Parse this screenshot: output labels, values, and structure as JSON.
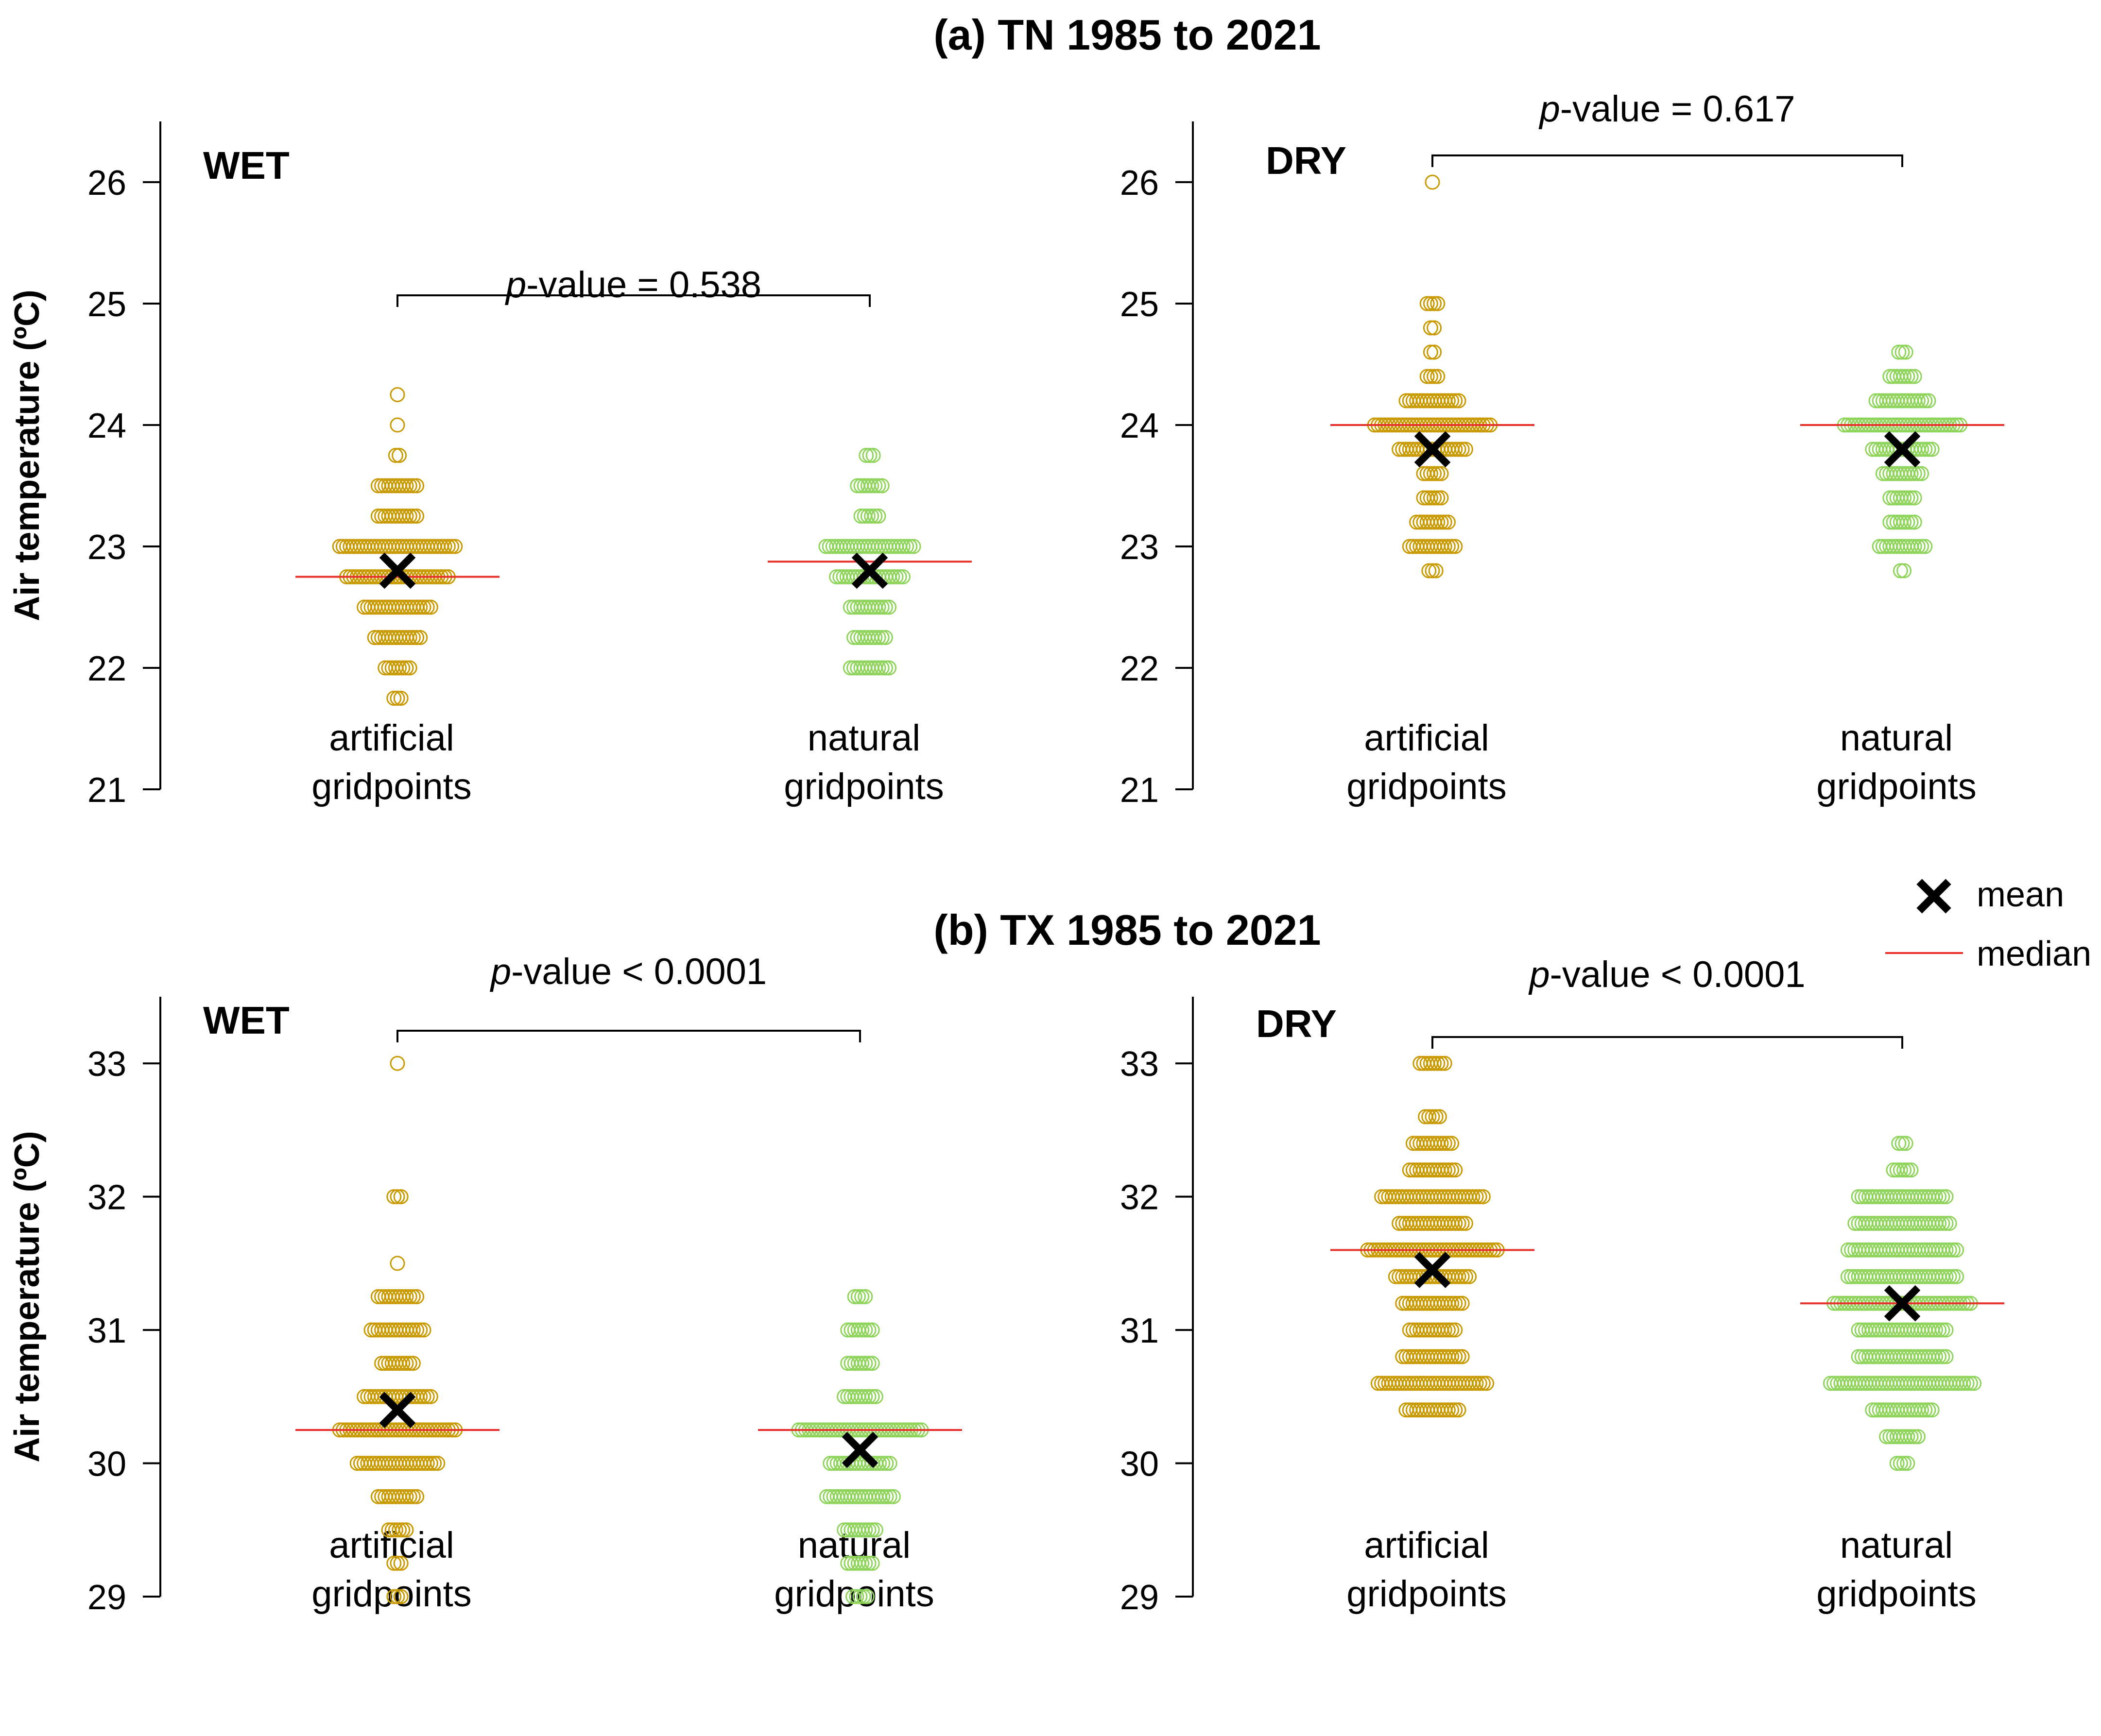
{
  "sections": [
    {
      "title": "(a) TN 1985 to 2021"
    },
    {
      "title": "(b) TX 1985 to 2021"
    }
  ],
  "legend": {
    "mean_label": "mean",
    "median_label": "median"
  },
  "labels": {
    "ylabel": "Air temperature (ºC)",
    "cat1_line1": "artificial",
    "cat1_line2": "gridpoints",
    "cat2_line1": "natural",
    "cat2_line2": "gridpoints",
    "p_prefix": "p"
  },
  "colors": {
    "artificial": "#c89a00",
    "natural": "#8fd45a",
    "median": "#e8302a",
    "mean": "#000000"
  },
  "chart_data": [
    {
      "type": "scatter",
      "title": "(a) TN 1985 to 2021",
      "panel": "WET",
      "ylabel": "Air temperature (ºC)",
      "ylim": [
        21,
        26.5
      ],
      "yticks": [
        21,
        22,
        23,
        24,
        25,
        26
      ],
      "categories": [
        "artificial gridpoints",
        "natural gridpoints"
      ],
      "p_value_text": "-value = 0.538",
      "series": [
        {
          "name": "artificial gridpoints",
          "mean": 22.8,
          "median": 22.75,
          "rows": [
            [
              24.25,
              1
            ],
            [
              24.0,
              1
            ],
            [
              23.75,
              2
            ],
            [
              23.5,
              12
            ],
            [
              23.25,
              12
            ],
            [
              23.0,
              34
            ],
            [
              22.75,
              30
            ],
            [
              22.5,
              20
            ],
            [
              22.25,
              14
            ],
            [
              22.0,
              8
            ],
            [
              21.75,
              3
            ]
          ]
        },
        {
          "name": "natural gridpoints",
          "mean": 22.8,
          "median": 22.875,
          "rows": [
            [
              23.75,
              3
            ],
            [
              23.5,
              8
            ],
            [
              23.25,
              6
            ],
            [
              23.0,
              26
            ],
            [
              22.75,
              20
            ],
            [
              22.5,
              12
            ],
            [
              22.25,
              10
            ],
            [
              22.0,
              12
            ]
          ]
        }
      ]
    },
    {
      "type": "scatter",
      "title": "(a) TN 1985 to 2021",
      "panel": "DRY",
      "ylabel": "",
      "ylim": [
        21,
        26.5
      ],
      "yticks": [
        21,
        22,
        23,
        24,
        25,
        26
      ],
      "categories": [
        "artificial gridpoints",
        "natural gridpoints"
      ],
      "p_value_text": "-value = 0.617",
      "series": [
        {
          "name": "artificial gridpoints",
          "mean": 23.8,
          "median": 24.0,
          "rows": [
            [
              26.0,
              1
            ],
            [
              25.0,
              4
            ],
            [
              24.8,
              2
            ],
            [
              24.6,
              2
            ],
            [
              24.4,
              4
            ],
            [
              24.2,
              16
            ],
            [
              24.0,
              34
            ],
            [
              23.8,
              20
            ],
            [
              23.6,
              6
            ],
            [
              23.4,
              6
            ],
            [
              23.2,
              10
            ],
            [
              23.0,
              14
            ],
            [
              22.8,
              3
            ]
          ]
        },
        {
          "name": "natural gridpoints",
          "mean": 23.8,
          "median": 24.0,
          "rows": [
            [
              24.6,
              3
            ],
            [
              24.4,
              8
            ],
            [
              24.2,
              16
            ],
            [
              24.0,
              34
            ],
            [
              23.8,
              18
            ],
            [
              23.6,
              12
            ],
            [
              23.4,
              8
            ],
            [
              23.2,
              8
            ],
            [
              23.0,
              14
            ],
            [
              22.8,
              2
            ]
          ]
        }
      ]
    },
    {
      "type": "scatter",
      "title": "(b) TX 1985 to 2021",
      "panel": "WET",
      "ylabel": "Air temperature (ºC)",
      "ylim": [
        29,
        33.5
      ],
      "yticks": [
        29,
        30,
        31,
        32,
        33
      ],
      "categories": [
        "artificial gridpoints",
        "natural gridpoints"
      ],
      "p_value_text": "-value < 0.0001",
      "series": [
        {
          "name": "artificial gridpoints",
          "mean": 30.4,
          "median": 30.25,
          "rows": [
            [
              33.0,
              1
            ],
            [
              32.0,
              3
            ],
            [
              31.5,
              1
            ],
            [
              31.25,
              12
            ],
            [
              31.0,
              16
            ],
            [
              30.75,
              10
            ],
            [
              30.5,
              20
            ],
            [
              30.25,
              34
            ],
            [
              30.0,
              24
            ],
            [
              29.75,
              12
            ],
            [
              29.5,
              6
            ],
            [
              29.25,
              3
            ],
            [
              29.0,
              3
            ]
          ]
        },
        {
          "name": "natural gridpoints",
          "mean": 30.1,
          "median": 30.25,
          "rows": [
            [
              31.25,
              4
            ],
            [
              31.0,
              8
            ],
            [
              30.75,
              8
            ],
            [
              30.5,
              10
            ],
            [
              30.25,
              36
            ],
            [
              30.0,
              18
            ],
            [
              29.75,
              20
            ],
            [
              29.5,
              10
            ],
            [
              29.25,
              8
            ],
            [
              29.0,
              5
            ]
          ]
        }
      ]
    },
    {
      "type": "scatter",
      "title": "(b) TX 1985 to 2021",
      "panel": "DRY",
      "ylabel": "",
      "ylim": [
        29,
        33.5
      ],
      "yticks": [
        29,
        30,
        31,
        32,
        33
      ],
      "categories": [
        "artificial gridpoints",
        "natural gridpoints"
      ],
      "p_value_text": "-value < 0.0001",
      "series": [
        {
          "name": "artificial gridpoints",
          "mean": 31.45,
          "median": 31.6,
          "rows": [
            [
              33.0,
              8
            ],
            [
              32.6,
              5
            ],
            [
              32.4,
              12
            ],
            [
              32.2,
              14
            ],
            [
              32.0,
              30
            ],
            [
              31.8,
              20
            ],
            [
              31.6,
              38
            ],
            [
              31.4,
              22
            ],
            [
              31.2,
              18
            ],
            [
              31.0,
              14
            ],
            [
              30.8,
              18
            ],
            [
              30.6,
              32
            ],
            [
              30.4,
              16
            ]
          ]
        },
        {
          "name": "natural gridpoints",
          "mean": 31.2,
          "median": 31.2,
          "rows": [
            [
              32.4,
              3
            ],
            [
              32.2,
              6
            ],
            [
              32.0,
              26
            ],
            [
              31.8,
              28
            ],
            [
              31.6,
              32
            ],
            [
              31.4,
              32
            ],
            [
              31.2,
              40
            ],
            [
              31.0,
              26
            ],
            [
              30.8,
              26
            ],
            [
              30.6,
              42
            ],
            [
              30.4,
              18
            ],
            [
              30.2,
              10
            ],
            [
              30.0,
              4
            ]
          ]
        }
      ]
    }
  ]
}
